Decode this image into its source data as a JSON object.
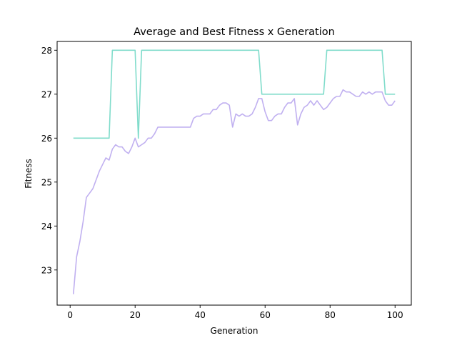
{
  "chart_data": {
    "type": "line",
    "title": "Average and Best Fitness x Generation",
    "xlabel": "Generation",
    "ylabel": "Fitness",
    "xlim": [
      -4,
      105
    ],
    "ylim": [
      22.2,
      28.2
    ],
    "xticks": [
      0,
      20,
      40,
      60,
      80,
      100
    ],
    "yticks": [
      23,
      24,
      25,
      26,
      27,
      28
    ],
    "grid": false,
    "series": [
      {
        "color": "#80dccb",
        "x": [
          1,
          2,
          3,
          4,
          5,
          6,
          7,
          8,
          9,
          10,
          11,
          12,
          13,
          14,
          15,
          16,
          17,
          18,
          19,
          20,
          21,
          22,
          23,
          24,
          25,
          26,
          27,
          28,
          29,
          30,
          31,
          32,
          33,
          34,
          35,
          36,
          37,
          38,
          39,
          40,
          41,
          42,
          43,
          44,
          45,
          46,
          47,
          48,
          49,
          50,
          51,
          52,
          53,
          54,
          55,
          56,
          57,
          58,
          59,
          60,
          61,
          62,
          63,
          64,
          65,
          66,
          67,
          68,
          69,
          70,
          71,
          72,
          73,
          74,
          75,
          76,
          77,
          78,
          79,
          80,
          81,
          82,
          83,
          84,
          85,
          86,
          87,
          88,
          89,
          90,
          91,
          92,
          93,
          94,
          95,
          96,
          97,
          98,
          99,
          100
        ],
        "values": [
          26,
          26,
          26,
          26,
          26,
          26,
          26,
          26,
          26,
          26,
          26,
          26,
          28,
          28,
          28,
          28,
          28,
          28,
          28,
          28,
          26,
          28,
          28,
          28,
          28,
          28,
          28,
          28,
          28,
          28,
          28,
          28,
          28,
          28,
          28,
          28,
          28,
          28,
          28,
          28,
          28,
          28,
          28,
          28,
          28,
          28,
          28,
          28,
          28,
          28,
          28,
          28,
          28,
          28,
          28,
          28,
          28,
          28,
          27,
          27,
          27,
          27,
          27,
          27,
          27,
          27,
          27,
          27,
          27,
          27,
          27,
          27,
          27,
          27,
          27,
          27,
          27,
          27,
          28,
          28,
          28,
          28,
          28,
          28,
          28,
          28,
          28,
          28,
          28,
          28,
          28,
          28,
          28,
          28,
          28,
          28,
          27,
          27,
          27,
          27
        ]
      },
      {
        "color": "#c0b0f0",
        "x": [
          1,
          2,
          3,
          4,
          5,
          6,
          7,
          8,
          9,
          10,
          11,
          12,
          13,
          14,
          15,
          16,
          17,
          18,
          19,
          20,
          21,
          22,
          23,
          24,
          25,
          26,
          27,
          28,
          29,
          30,
          31,
          32,
          33,
          34,
          35,
          36,
          37,
          38,
          39,
          40,
          41,
          42,
          43,
          44,
          45,
          46,
          47,
          48,
          49,
          50,
          51,
          52,
          53,
          54,
          55,
          56,
          57,
          58,
          59,
          60,
          61,
          62,
          63,
          64,
          65,
          66,
          67,
          68,
          69,
          70,
          71,
          72,
          73,
          74,
          75,
          76,
          77,
          78,
          79,
          80,
          81,
          82,
          83,
          84,
          85,
          86,
          87,
          88,
          89,
          90,
          91,
          92,
          93,
          94,
          95,
          96,
          97,
          98,
          99,
          100
        ],
        "values": [
          22.45,
          23.3,
          23.65,
          24.1,
          24.65,
          24.75,
          24.85,
          25.05,
          25.25,
          25.4,
          25.55,
          25.5,
          25.75,
          25.85,
          25.8,
          25.8,
          25.7,
          25.65,
          25.8,
          26.0,
          25.8,
          25.85,
          25.9,
          26.0,
          26.0,
          26.1,
          26.25,
          26.25,
          26.25,
          26.25,
          26.25,
          26.25,
          26.25,
          26.25,
          26.25,
          26.25,
          26.25,
          26.45,
          26.5,
          26.5,
          26.55,
          26.55,
          26.55,
          26.65,
          26.65,
          26.75,
          26.8,
          26.8,
          26.75,
          26.25,
          26.55,
          26.5,
          26.55,
          26.5,
          26.5,
          26.55,
          26.7,
          26.9,
          26.9,
          26.6,
          26.4,
          26.4,
          26.5,
          26.55,
          26.55,
          26.7,
          26.8,
          26.8,
          26.9,
          26.3,
          26.55,
          26.7,
          26.75,
          26.85,
          26.75,
          26.85,
          26.75,
          26.65,
          26.7,
          26.8,
          26.9,
          26.95,
          26.95,
          27.1,
          27.05,
          27.05,
          27.0,
          26.95,
          26.95,
          27.05,
          27.0,
          27.05,
          27.0,
          27.05,
          27.05,
          27.05,
          26.85,
          26.75,
          26.75,
          26.85
        ]
      }
    ]
  }
}
